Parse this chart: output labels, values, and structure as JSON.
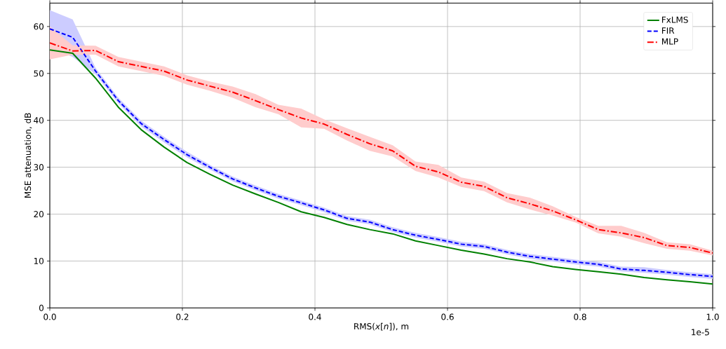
{
  "chart_data": {
    "type": "line",
    "xlabel": "RMS(*x*[*n*]), m",
    "ylabel": "MSE attenuation, dB",
    "x": [
      0,
      0.0345,
      0.069,
      0.1034,
      0.1379,
      0.1724,
      0.2069,
      0.2414,
      0.2759,
      0.3103,
      0.3448,
      0.3793,
      0.4138,
      0.4483,
      0.4828,
      0.5172,
      0.5517,
      0.5862,
      0.6207,
      0.6552,
      0.6897,
      0.7241,
      0.7586,
      0.7931,
      0.8276,
      0.8621,
      0.8966,
      0.931,
      0.9655,
      1.0
    ],
    "series": [
      {
        "name": "FxLMS",
        "color": "#008000",
        "line_style": "solid",
        "values": [
          55,
          54.3,
          49,
          42.8,
          38,
          34.3,
          31,
          28.5,
          26.2,
          24.3,
          22.5,
          20.5,
          19.3,
          17.8,
          16.7,
          15.8,
          14.3,
          13.3,
          12.3,
          11.5,
          10.5,
          9.8,
          8.8,
          8.2,
          7.7,
          7.2,
          6.5,
          6.0,
          5.6,
          5.1
        ]
      },
      {
        "name": "FIR",
        "color": "#0000ff",
        "line_style": "dashed",
        "values": [
          59.5,
          57.7,
          50.5,
          44.2,
          39.3,
          35.9,
          32.7,
          30,
          27.5,
          25.6,
          23.8,
          22.4,
          20.9,
          19.1,
          18.3,
          16.7,
          15.5,
          14.6,
          13.6,
          13.1,
          11.9,
          11,
          10.4,
          9.8,
          9.3,
          8.3,
          8,
          7.6,
          7.1,
          6.7
        ],
        "lower": [
          55.5,
          53.5,
          49.8,
          43.6,
          38.7,
          35.3,
          32.1,
          29.5,
          27,
          25.1,
          23.3,
          21.9,
          20.4,
          18.6,
          17.8,
          16.2,
          15,
          14.1,
          13.1,
          12.6,
          11.4,
          10.5,
          9.9,
          9.3,
          8.8,
          7.8,
          7.5,
          7.1,
          6.6,
          6.2
        ],
        "upper": [
          63.5,
          61.5,
          51.2,
          44.8,
          39.9,
          36.5,
          33.3,
          30.5,
          28,
          26.1,
          24.3,
          22.9,
          21.4,
          19.6,
          18.8,
          17.2,
          16,
          15.1,
          14.1,
          13.6,
          12.4,
          11.5,
          10.9,
          10.3,
          9.8,
          8.8,
          8.7,
          8.1,
          7.6,
          7.2
        ]
      },
      {
        "name": "MLP",
        "color": "#ff0000",
        "line_style": "dashdot",
        "values": [
          56.5,
          54.8,
          54.9,
          52.5,
          51.5,
          50.5,
          48.6,
          47.3,
          46,
          44.2,
          42.3,
          40.5,
          39.2,
          37,
          35,
          33.5,
          30.2,
          29,
          26.8,
          25.9,
          23.5,
          22.2,
          20.7,
          18.8,
          16.7,
          16.0,
          15,
          13.3,
          12.9,
          11.7
        ],
        "lower": [
          53,
          54,
          54,
          51.5,
          50.5,
          49.5,
          47.6,
          46.3,
          44.8,
          42.8,
          41.3,
          38.5,
          38.2,
          35.7,
          33.5,
          32.3,
          29.2,
          27.8,
          25.8,
          24.9,
          22.5,
          21,
          19.7,
          18.2,
          15.9,
          15.2,
          13.8,
          12.6,
          12.2,
          11.2
        ],
        "upper": [
          60,
          56,
          55.9,
          53.5,
          52.5,
          51.5,
          49.6,
          48.3,
          47.2,
          45.6,
          43.3,
          42.5,
          40.2,
          38.3,
          36.5,
          34.7,
          31.2,
          30.5,
          27.8,
          26.9,
          24.5,
          23.5,
          21.7,
          19.4,
          17.5,
          17.5,
          16,
          14,
          13.6,
          12.2
        ]
      }
    ],
    "xlim": [
      0,
      1.0
    ],
    "ylim": [
      0,
      65
    ],
    "xticks": [
      {
        "value": 0,
        "label": "0.0"
      },
      {
        "value": 0.2,
        "label": "0.2"
      },
      {
        "value": 0.4,
        "label": "0.4"
      },
      {
        "value": 0.6,
        "label": "0.6"
      },
      {
        "value": 0.8,
        "label": "0.8"
      },
      {
        "value": 1.0,
        "label": "1.0"
      }
    ],
    "yticks": [
      0,
      10,
      20,
      30,
      40,
      50,
      60
    ],
    "annotations": [
      "1e-5"
    ],
    "grid": true,
    "legend": "top right"
  }
}
